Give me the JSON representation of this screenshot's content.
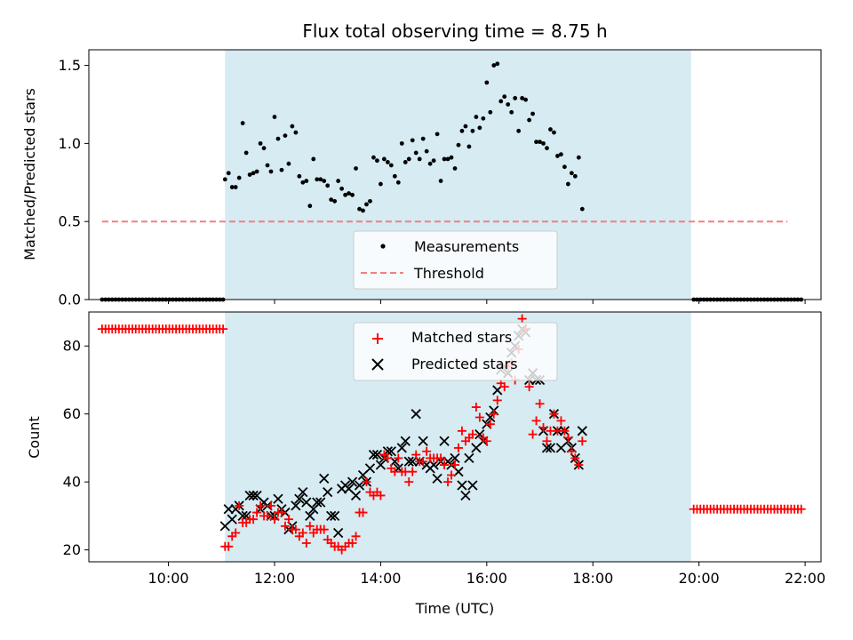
{
  "chart_data": [
    {
      "type": "scatter",
      "title": "Flux total observing time = 8.75 h",
      "xlabel": "",
      "ylabel": "Matched/Predicted stars",
      "xlim": [
        "08:30",
        "22:18"
      ],
      "ylim": [
        0,
        1.6
      ],
      "yticks": [
        "0.0",
        "0.5",
        "1.0",
        "1.5"
      ],
      "grid": false,
      "legend_position": "lower center",
      "shaded_interval": {
        "start": "11:04",
        "end": "19:51",
        "color": "#add8e6"
      },
      "series": [
        {
          "name": "Measurements",
          "marker": "dot",
          "color": "#000000",
          "x_start": "11:04",
          "x_step_min": 4,
          "y": [
            0.77,
            0.81,
            0.72,
            0.72,
            0.78,
            1.13,
            0.94,
            0.8,
            0.81,
            0.82,
            1.0,
            0.97,
            0.86,
            0.82,
            1.17,
            1.03,
            0.83,
            1.05,
            0.87,
            1.11,
            1.07,
            0.79,
            0.75,
            0.76,
            0.6,
            0.9,
            0.77,
            0.77,
            0.76,
            0.73,
            0.64,
            0.63,
            0.76,
            0.71,
            0.67,
            0.68,
            0.67,
            0.84,
            0.58,
            0.57,
            0.61,
            0.63,
            0.91,
            0.89,
            0.74,
            0.9,
            0.88,
            0.86,
            0.79,
            0.75,
            1.0,
            0.88,
            0.9,
            1.02,
            0.94,
            0.9,
            1.03,
            0.95,
            0.87,
            0.89,
            1.06,
            0.76,
            0.9,
            0.9,
            0.91,
            0.84,
            0.99,
            1.08,
            1.11,
            0.98,
            1.08,
            1.17,
            1.1,
            1.16,
            1.39,
            1.2,
            1.5,
            1.51,
            1.27,
            1.3,
            1.25,
            1.2,
            1.29,
            1.08,
            1.29,
            1.28,
            1.15,
            1.19,
            1.01,
            1.01,
            1.0,
            0.97,
            1.09,
            1.07,
            0.92,
            0.93,
            0.85,
            0.74,
            0.81,
            0.79,
            0.91,
            0.58
          ]
        },
        {
          "name": "zero-before",
          "marker": "dot",
          "color": "#000000",
          "x_start": "08:45",
          "x_step_min": 3.8,
          "y": [
            0,
            0,
            0,
            0,
            0,
            0,
            0,
            0,
            0,
            0,
            0,
            0,
            0,
            0,
            0,
            0,
            0,
            0,
            0,
            0,
            0,
            0,
            0,
            0,
            0,
            0,
            0,
            0,
            0,
            0,
            0,
            0,
            0,
            0,
            0,
            0,
            0
          ]
        },
        {
          "name": "zero-after",
          "marker": "dot",
          "color": "#000000",
          "x_start": "19:54",
          "x_step_min": 3.8,
          "y": [
            0,
            0,
            0,
            0,
            0,
            0,
            0,
            0,
            0,
            0,
            0,
            0,
            0,
            0,
            0,
            0,
            0,
            0,
            0,
            0,
            0,
            0,
            0,
            0,
            0,
            0,
            0,
            0,
            0,
            0,
            0,
            0,
            0
          ]
        },
        {
          "name": "Threshold",
          "marker": "dashed-line",
          "color": "#f08080",
          "x": [
            "08:45",
            "21:40"
          ],
          "y": [
            0.5,
            0.5
          ]
        }
      ],
      "legend": [
        "Measurements",
        "Threshold"
      ]
    },
    {
      "type": "scatter",
      "title": "",
      "xlabel": "Time (UTC)",
      "ylabel": "Count",
      "xlim": [
        "08:30",
        "22:18"
      ],
      "ylim": [
        16.5,
        90
      ],
      "yticks": [
        "20",
        "40",
        "60",
        "80"
      ],
      "xticks": [
        "10:00",
        "12:00",
        "14:00",
        "16:00",
        "18:00",
        "20:00",
        "22:00"
      ],
      "grid": false,
      "legend_position": "upper center",
      "shaded_interval": {
        "start": "11:04",
        "end": "19:51",
        "color": "#add8e6"
      },
      "series": [
        {
          "name": "Matched stars",
          "marker": "plus",
          "color": "#ff0000",
          "x_start": "11:04",
          "x_step_min": 4,
          "y": [
            21,
            21,
            24,
            25,
            33,
            28,
            28,
            29,
            29,
            31,
            33,
            30,
            30,
            33,
            29,
            31,
            31,
            27,
            29,
            26,
            26,
            24,
            25,
            22,
            27,
            25,
            26,
            26,
            26,
            23,
            22,
            21,
            21,
            20,
            21,
            22,
            22,
            24,
            31,
            31,
            40,
            37,
            36,
            37,
            36,
            48,
            47,
            44,
            43,
            47,
            43,
            43,
            40,
            43,
            48,
            46,
            46,
            49,
            47,
            47,
            47,
            47,
            45,
            40,
            42,
            45,
            50,
            55,
            52,
            53,
            54,
            62,
            59,
            53,
            52,
            57,
            60,
            64,
            69,
            68,
            74,
            75,
            70,
            79,
            88,
            85,
            68,
            54,
            58,
            63,
            56,
            52,
            55,
            60,
            55,
            58,
            55,
            53,
            49,
            47,
            45,
            52
          ]
        },
        {
          "name": "Predicted stars",
          "marker": "x",
          "color": "#000000",
          "x_start": "11:04",
          "x_step_min": 4,
          "y": [
            27,
            32,
            29,
            32,
            33,
            30,
            30,
            36,
            36,
            36,
            32,
            34,
            33,
            30,
            30,
            35,
            32,
            31,
            26,
            27,
            33,
            35,
            37,
            34,
            30,
            32,
            34,
            34,
            41,
            37,
            30,
            30,
            25,
            38,
            39,
            38,
            40,
            36,
            39,
            42,
            40,
            44,
            48,
            48,
            45,
            47,
            49,
            49,
            46,
            44,
            50,
            52,
            46,
            46,
            60,
            46,
            52,
            45,
            44,
            45,
            41,
            46,
            52,
            46,
            45,
            47,
            43,
            39,
            36,
            47,
            39,
            50,
            54,
            52,
            57,
            59,
            61,
            67,
            73,
            74,
            72,
            78,
            80,
            83,
            85,
            84,
            70,
            72,
            70,
            70,
            55,
            50,
            50,
            60,
            55,
            50,
            55,
            52,
            50,
            47,
            45,
            55
          ]
        },
        {
          "name": "count-before",
          "marker": "plus",
          "color": "#ff0000",
          "x_start": "08:45",
          "x_step_min": 3.8,
          "y": [
            85,
            85,
            85,
            85,
            85,
            85,
            85,
            85,
            85,
            85,
            85,
            85,
            85,
            85,
            85,
            85,
            85,
            85,
            85,
            85,
            85,
            85,
            85,
            85,
            85,
            85,
            85,
            85,
            85,
            85,
            85,
            85,
            85,
            85,
            85,
            85,
            85
          ]
        },
        {
          "name": "count-after",
          "marker": "plus",
          "color": "#ff0000",
          "x_start": "19:54",
          "x_step_min": 3.8,
          "y": [
            32,
            32,
            32,
            32,
            32,
            32,
            32,
            32,
            32,
            32,
            32,
            32,
            32,
            32,
            32,
            32,
            32,
            32,
            32,
            32,
            32,
            32,
            32,
            32,
            32,
            32,
            32,
            32,
            32,
            32,
            32,
            32,
            32
          ]
        }
      ],
      "legend": [
        "Matched stars",
        "Predicted stars"
      ]
    }
  ]
}
